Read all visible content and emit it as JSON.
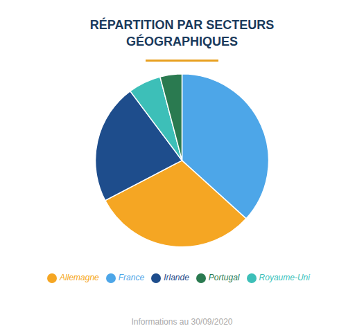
{
  "chart_data": {
    "type": "pie",
    "title": "RÉPARTITION PAR SECTEURS\nGÉOGRAPHIQUES",
    "categories": [
      "France",
      "Allemagne",
      "Irlande",
      "Royaume-Uni",
      "Portugal"
    ],
    "values": [
      36,
      30,
      22,
      6,
      4
    ],
    "colors": [
      "#4da6e8",
      "#f5a623",
      "#1e4d8c",
      "#3dbfb8",
      "#2a7a50"
    ],
    "legend": "bottom",
    "annotations": [
      "Informations au 30/09/2020"
    ]
  }
}
